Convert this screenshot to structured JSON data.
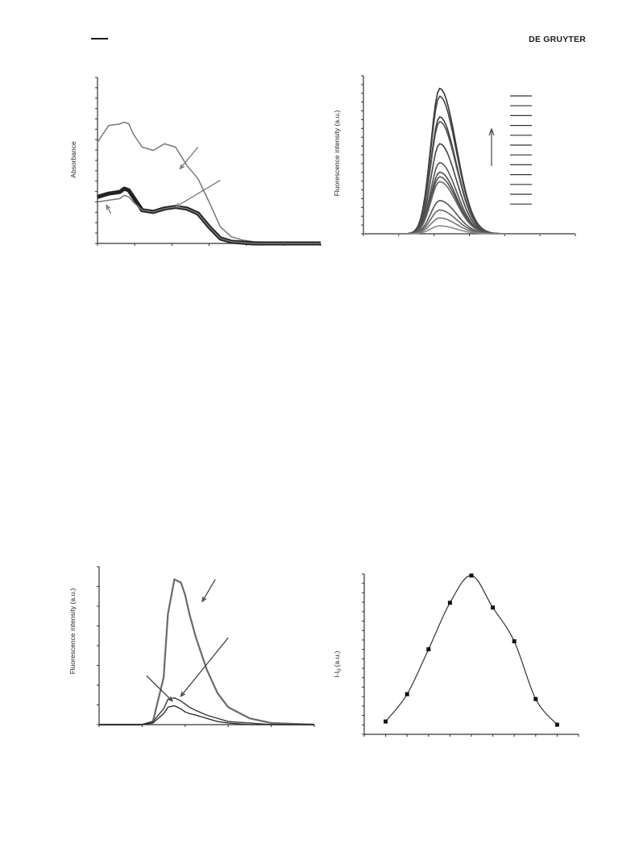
{
  "header": {
    "publisher": "DE GRUYTER"
  },
  "charts": [
    {
      "chart_data": {
        "type": "line",
        "ylabel": "Absorbance",
        "xlabel": "",
        "xlim": [
          0,
          100
        ],
        "ylim": [
          0,
          1
        ],
        "series": [
          {
            "x": [
              0,
              5,
              10,
              12,
              14,
              16,
              20,
              25,
              30,
              35,
              40,
              45,
              50,
              55,
              60,
              65,
              70,
              80,
              90,
              100
            ],
            "y": [
              0.61,
              0.71,
              0.72,
              0.73,
              0.72,
              0.66,
              0.58,
              0.56,
              0.6,
              0.58,
              0.47,
              0.39,
              0.25,
              0.1,
              0.04,
              0.02,
              0.01,
              0.005,
              0.002,
              0.0
            ]
          },
          {
            "x": [
              0,
              5,
              10,
              12,
              14,
              16,
              20,
              25,
              30,
              35,
              40,
              45,
              50,
              55,
              60,
              65,
              70,
              80,
              90,
              100
            ],
            "y": [
              0.28,
              0.3,
              0.31,
              0.33,
              0.32,
              0.28,
              0.2,
              0.19,
              0.21,
              0.22,
              0.21,
              0.18,
              0.1,
              0.03,
              0.01,
              0.005,
              0.0,
              0.0,
              0.0,
              0.0
            ]
          },
          {
            "x": [
              0,
              5,
              10,
              12,
              14,
              16,
              20,
              25,
              30,
              35,
              40,
              45,
              50,
              55,
              60,
              65,
              70,
              80,
              90,
              100
            ],
            "y": [
              0.25,
              0.26,
              0.27,
              0.29,
              0.28,
              0.25,
              0.2,
              0.19,
              0.21,
              0.22,
              0.21,
              0.18,
              0.1,
              0.03,
              0.01,
              0.005,
              0.0,
              0.0,
              0.0,
              0.0
            ]
          }
        ]
      },
      "yticks": 16,
      "xticks": 6,
      "arrows": [
        {
          "from": [
            45,
            0.58
          ],
          "to": [
            37,
            0.45
          ]
        },
        {
          "from": [
            55,
            0.38
          ],
          "to": [
            35,
            0.22
          ]
        },
        {
          "from": [
            6,
            0.18
          ],
          "to": [
            4,
            0.23
          ]
        }
      ]
    },
    {
      "chart_data": {
        "type": "line",
        "ylabel": "Fluorescence intensity (a.u.)",
        "xlabel": "",
        "xlim": [
          0,
          100
        ],
        "ylim": [
          0,
          1
        ],
        "peak_x": 36,
        "peaks": [
          0.92,
          0.87,
          0.74,
          0.71,
          0.57,
          0.45,
          0.39,
          0.36,
          0.33,
          0.21,
          0.15,
          0.1,
          0.05
        ],
        "legend_placement": "top-right",
        "legend_entries": 12
      },
      "yticks": 18,
      "xticks": 6,
      "arrow": {
        "direction": "up"
      }
    },
    {
      "chart_data": {
        "type": "line",
        "ylabel": "Fluorescence intensity (a.u.)",
        "xlabel": "",
        "xlim": [
          0,
          100
        ],
        "ylim": [
          0,
          1
        ],
        "series": [
          {
            "x": [
              0,
              20,
              25,
              30,
              32,
              35,
              38,
              40,
              42,
              45,
              50,
              55,
              60,
              70,
              80,
              90,
              100
            ],
            "y": [
              0,
              0,
              0.02,
              0.3,
              0.7,
              0.92,
              0.9,
              0.82,
              0.7,
              0.55,
              0.35,
              0.2,
              0.11,
              0.04,
              0.01,
              0.005,
              0.0
            ]
          },
          {
            "x": [
              0,
              20,
              25,
              30,
              32,
              35,
              38,
              40,
              42,
              45,
              50,
              55,
              60,
              70,
              80,
              90,
              100
            ],
            "y": [
              0,
              0,
              0.02,
              0.1,
              0.16,
              0.17,
              0.15,
              0.13,
              0.11,
              0.09,
              0.06,
              0.04,
              0.02,
              0.01,
              0.0,
              0.0,
              0.0
            ]
          },
          {
            "x": [
              0,
              20,
              25,
              30,
              32,
              35,
              38,
              40,
              42,
              45,
              50,
              55,
              60,
              70,
              80,
              90,
              100
            ],
            "y": [
              0,
              0,
              0.01,
              0.07,
              0.11,
              0.12,
              0.1,
              0.08,
              0.07,
              0.06,
              0.04,
              0.02,
              0.01,
              0.0,
              0.0,
              0.0,
              0.0
            ]
          }
        ]
      },
      "yticks": 8,
      "xticks": 5,
      "arrows": [
        {
          "from": [
            54,
            0.92
          ],
          "to": [
            48,
            0.78
          ]
        },
        {
          "from": [
            60,
            0.55
          ],
          "to": [
            38,
            0.18
          ]
        },
        {
          "from": [
            22,
            0.31
          ],
          "to": [
            34,
            0.15
          ]
        }
      ]
    },
    {
      "chart_data": {
        "type": "line",
        "ylabel": "I-I",
        "ylabel_sub": "0",
        "ylabel_unit": "(a.u.)",
        "xlabel": "",
        "xlim": [
          0,
          100
        ],
        "ylim": [
          0,
          1
        ],
        "x": [
          10,
          20,
          30,
          40,
          50,
          60,
          70,
          80,
          90
        ],
        "y": [
          0.08,
          0.25,
          0.53,
          0.82,
          0.99,
          0.79,
          0.58,
          0.22,
          0.06
        ]
      },
      "yticks": 17,
      "xticks": 10
    }
  ]
}
